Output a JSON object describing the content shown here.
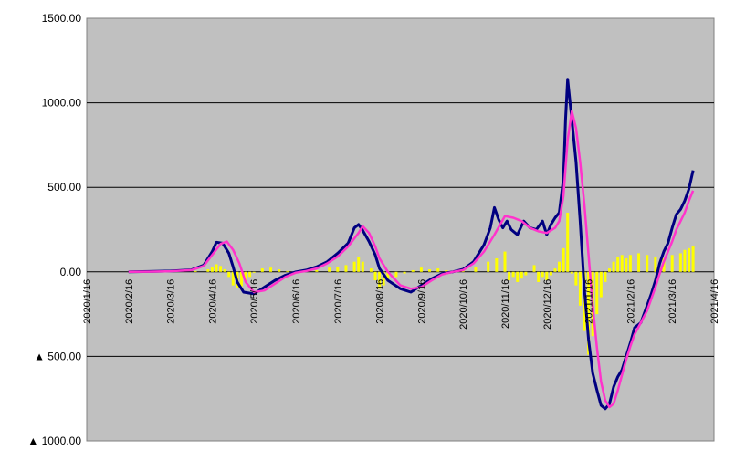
{
  "chart_data": {
    "type": "line",
    "title": "",
    "xlabel": "",
    "ylabel": "",
    "x_tick_labels": [
      "2020/1/16",
      "2020/2/16",
      "2020/3/16",
      "2020/4/16",
      "2020/5/16",
      "2020/6/16",
      "2020/7/16",
      "2020/8/16",
      "2020/9/16",
      "2020/10/16",
      "2020/11/16",
      "2020/12/16",
      "2021/1/16",
      "2021/2/16",
      "2021/3/16",
      "2021/4/16"
    ],
    "y_ticks": [
      {
        "value": 1500,
        "label": "1500.00"
      },
      {
        "value": 1000,
        "label": "1000.00"
      },
      {
        "value": 500,
        "label": "500.00"
      },
      {
        "value": 0,
        "label": "0.00"
      },
      {
        "value": -500,
        "label": "▲ 500.00"
      },
      {
        "value": -1000,
        "label": "▲ 1000.00"
      }
    ],
    "ylim": [
      -1000,
      1500
    ],
    "grid": true,
    "legend": "none",
    "plot_background": "#c0c0c0",
    "series": [
      {
        "style": "bar",
        "color": "#ffff00",
        "points": [
          [
            1,
            0
          ],
          [
            2,
            2
          ],
          [
            2.6,
            5
          ],
          [
            2.9,
            15
          ],
          [
            3.0,
            30
          ],
          [
            3.1,
            45
          ],
          [
            3.2,
            35
          ],
          [
            3.3,
            15
          ],
          [
            3.4,
            -30
          ],
          [
            3.5,
            -80
          ],
          [
            3.6,
            -95
          ],
          [
            3.7,
            -85
          ],
          [
            3.8,
            -60
          ],
          [
            3.9,
            -30
          ],
          [
            4.0,
            -5
          ],
          [
            4.2,
            20
          ],
          [
            4.4,
            25
          ],
          [
            4.6,
            15
          ],
          [
            4.8,
            5
          ],
          [
            5.0,
            2
          ],
          [
            5.5,
            10
          ],
          [
            5.8,
            25
          ],
          [
            6.0,
            30
          ],
          [
            6.2,
            40
          ],
          [
            6.4,
            60
          ],
          [
            6.5,
            90
          ],
          [
            6.6,
            60
          ],
          [
            6.8,
            20
          ],
          [
            6.9,
            -50
          ],
          [
            7.0,
            -100
          ],
          [
            7.1,
            -80
          ],
          [
            7.2,
            -50
          ],
          [
            7.4,
            -30
          ],
          [
            7.6,
            -10
          ],
          [
            7.8,
            10
          ],
          [
            8.0,
            25
          ],
          [
            8.2,
            15
          ],
          [
            8.4,
            20
          ],
          [
            8.6,
            10
          ],
          [
            8.8,
            5
          ],
          [
            9.0,
            10
          ],
          [
            9.3,
            30
          ],
          [
            9.6,
            60
          ],
          [
            9.8,
            80
          ],
          [
            10.0,
            120
          ],
          [
            10.1,
            -50
          ],
          [
            10.2,
            -30
          ],
          [
            10.3,
            -60
          ],
          [
            10.4,
            -40
          ],
          [
            10.5,
            -20
          ],
          [
            10.7,
            40
          ],
          [
            10.8,
            -60
          ],
          [
            10.9,
            -30
          ],
          [
            11.0,
            -50
          ],
          [
            11.1,
            -20
          ],
          [
            11.2,
            20
          ],
          [
            11.3,
            60
          ],
          [
            11.4,
            140
          ],
          [
            11.5,
            350
          ],
          [
            11.6,
            -10
          ],
          [
            11.7,
            -80
          ],
          [
            11.8,
            -200
          ],
          [
            11.9,
            -350
          ],
          [
            12.0,
            -490
          ],
          [
            12.1,
            -380
          ],
          [
            12.2,
            -250
          ],
          [
            12.3,
            -150
          ],
          [
            12.4,
            -60
          ],
          [
            12.5,
            20
          ],
          [
            12.6,
            60
          ],
          [
            12.7,
            90
          ],
          [
            12.8,
            100
          ],
          [
            12.9,
            80
          ],
          [
            13.0,
            100
          ],
          [
            13.2,
            110
          ],
          [
            13.4,
            100
          ],
          [
            13.6,
            90
          ],
          [
            13.8,
            80
          ],
          [
            14.0,
            100
          ],
          [
            14.2,
            110
          ],
          [
            14.3,
            130
          ],
          [
            14.4,
            140
          ],
          [
            14.5,
            150
          ]
        ]
      },
      {
        "style": "line",
        "color": "#000080",
        "points": [
          [
            1,
            0
          ],
          [
            1.5,
            2
          ],
          [
            2,
            5
          ],
          [
            2.5,
            12
          ],
          [
            2.8,
            40
          ],
          [
            3.0,
            120
          ],
          [
            3.1,
            175
          ],
          [
            3.25,
            170
          ],
          [
            3.4,
            110
          ],
          [
            3.5,
            30
          ],
          [
            3.6,
            -60
          ],
          [
            3.75,
            -120
          ],
          [
            4.0,
            -130
          ],
          [
            4.25,
            -90
          ],
          [
            4.5,
            -50
          ],
          [
            4.75,
            -20
          ],
          [
            5.0,
            0
          ],
          [
            5.25,
            10
          ],
          [
            5.5,
            30
          ],
          [
            5.75,
            60
          ],
          [
            6.0,
            110
          ],
          [
            6.25,
            170
          ],
          [
            6.4,
            260
          ],
          [
            6.5,
            280
          ],
          [
            6.6,
            245
          ],
          [
            6.75,
            180
          ],
          [
            6.9,
            100
          ],
          [
            7.0,
            20
          ],
          [
            7.2,
            -50
          ],
          [
            7.5,
            -100
          ],
          [
            7.75,
            -120
          ],
          [
            8.0,
            -80
          ],
          [
            8.25,
            -40
          ],
          [
            8.5,
            -10
          ],
          [
            8.75,
            0
          ],
          [
            9.0,
            15
          ],
          [
            9.25,
            60
          ],
          [
            9.5,
            160
          ],
          [
            9.65,
            260
          ],
          [
            9.75,
            380
          ],
          [
            9.85,
            310
          ],
          [
            9.95,
            260
          ],
          [
            10.05,
            300
          ],
          [
            10.15,
            250
          ],
          [
            10.3,
            220
          ],
          [
            10.45,
            300
          ],
          [
            10.6,
            260
          ],
          [
            10.75,
            250
          ],
          [
            10.9,
            300
          ],
          [
            11.0,
            220
          ],
          [
            11.1,
            280
          ],
          [
            11.2,
            320
          ],
          [
            11.3,
            350
          ],
          [
            11.4,
            550
          ],
          [
            11.45,
            900
          ],
          [
            11.5,
            1140
          ],
          [
            11.6,
            900
          ],
          [
            11.7,
            650
          ],
          [
            11.8,
            300
          ],
          [
            11.9,
            -100
          ],
          [
            12.0,
            -400
          ],
          [
            12.1,
            -600
          ],
          [
            12.2,
            -700
          ],
          [
            12.3,
            -790
          ],
          [
            12.4,
            -810
          ],
          [
            12.5,
            -780
          ],
          [
            12.6,
            -680
          ],
          [
            12.7,
            -620
          ],
          [
            12.8,
            -580
          ],
          [
            12.9,
            -500
          ],
          [
            13.0,
            -420
          ],
          [
            13.1,
            -330
          ],
          [
            13.25,
            -300
          ],
          [
            13.4,
            -200
          ],
          [
            13.5,
            -130
          ],
          [
            13.6,
            -50
          ],
          [
            13.7,
            50
          ],
          [
            13.8,
            120
          ],
          [
            13.9,
            170
          ],
          [
            14.0,
            260
          ],
          [
            14.1,
            340
          ],
          [
            14.2,
            370
          ],
          [
            14.3,
            420
          ],
          [
            14.4,
            490
          ],
          [
            14.5,
            600
          ]
        ]
      },
      {
        "style": "line",
        "color": "#ff33cc",
        "points": [
          [
            1,
            0
          ],
          [
            1.5,
            1
          ],
          [
            2,
            4
          ],
          [
            2.5,
            10
          ],
          [
            2.8,
            35
          ],
          [
            3.0,
            100
          ],
          [
            3.2,
            165
          ],
          [
            3.35,
            180
          ],
          [
            3.5,
            130
          ],
          [
            3.65,
            50
          ],
          [
            3.8,
            -60
          ],
          [
            4.0,
            -120
          ],
          [
            4.25,
            -110
          ],
          [
            4.5,
            -70
          ],
          [
            4.75,
            -30
          ],
          [
            5.0,
            -5
          ],
          [
            5.25,
            5
          ],
          [
            5.5,
            20
          ],
          [
            5.75,
            50
          ],
          [
            6.0,
            90
          ],
          [
            6.25,
            150
          ],
          [
            6.5,
            230
          ],
          [
            6.6,
            270
          ],
          [
            6.75,
            230
          ],
          [
            6.9,
            150
          ],
          [
            7.0,
            80
          ],
          [
            7.2,
            0
          ],
          [
            7.5,
            -80
          ],
          [
            7.75,
            -100
          ],
          [
            8.0,
            -90
          ],
          [
            8.25,
            -50
          ],
          [
            8.5,
            -15
          ],
          [
            8.75,
            0
          ],
          [
            9.0,
            10
          ],
          [
            9.25,
            50
          ],
          [
            9.5,
            120
          ],
          [
            9.75,
            220
          ],
          [
            10.0,
            330
          ],
          [
            10.2,
            320
          ],
          [
            10.4,
            300
          ],
          [
            10.6,
            260
          ],
          [
            10.8,
            240
          ],
          [
            11.0,
            230
          ],
          [
            11.2,
            260
          ],
          [
            11.3,
            300
          ],
          [
            11.4,
            450
          ],
          [
            11.5,
            780
          ],
          [
            11.6,
            950
          ],
          [
            11.7,
            850
          ],
          [
            11.8,
            650
          ],
          [
            11.9,
            400
          ],
          [
            12.0,
            100
          ],
          [
            12.1,
            -200
          ],
          [
            12.2,
            -450
          ],
          [
            12.3,
            -650
          ],
          [
            12.4,
            -760
          ],
          [
            12.5,
            -800
          ],
          [
            12.6,
            -780
          ],
          [
            12.7,
            -700
          ],
          [
            12.8,
            -610
          ],
          [
            12.9,
            -520
          ],
          [
            13.0,
            -440
          ],
          [
            13.1,
            -370
          ],
          [
            13.25,
            -300
          ],
          [
            13.4,
            -230
          ],
          [
            13.5,
            -160
          ],
          [
            13.6,
            -90
          ],
          [
            13.7,
            -10
          ],
          [
            13.8,
            60
          ],
          [
            13.9,
            120
          ],
          [
            14.0,
            180
          ],
          [
            14.1,
            250
          ],
          [
            14.2,
            300
          ],
          [
            14.3,
            350
          ],
          [
            14.4,
            420
          ],
          [
            14.5,
            480
          ]
        ]
      }
    ]
  }
}
